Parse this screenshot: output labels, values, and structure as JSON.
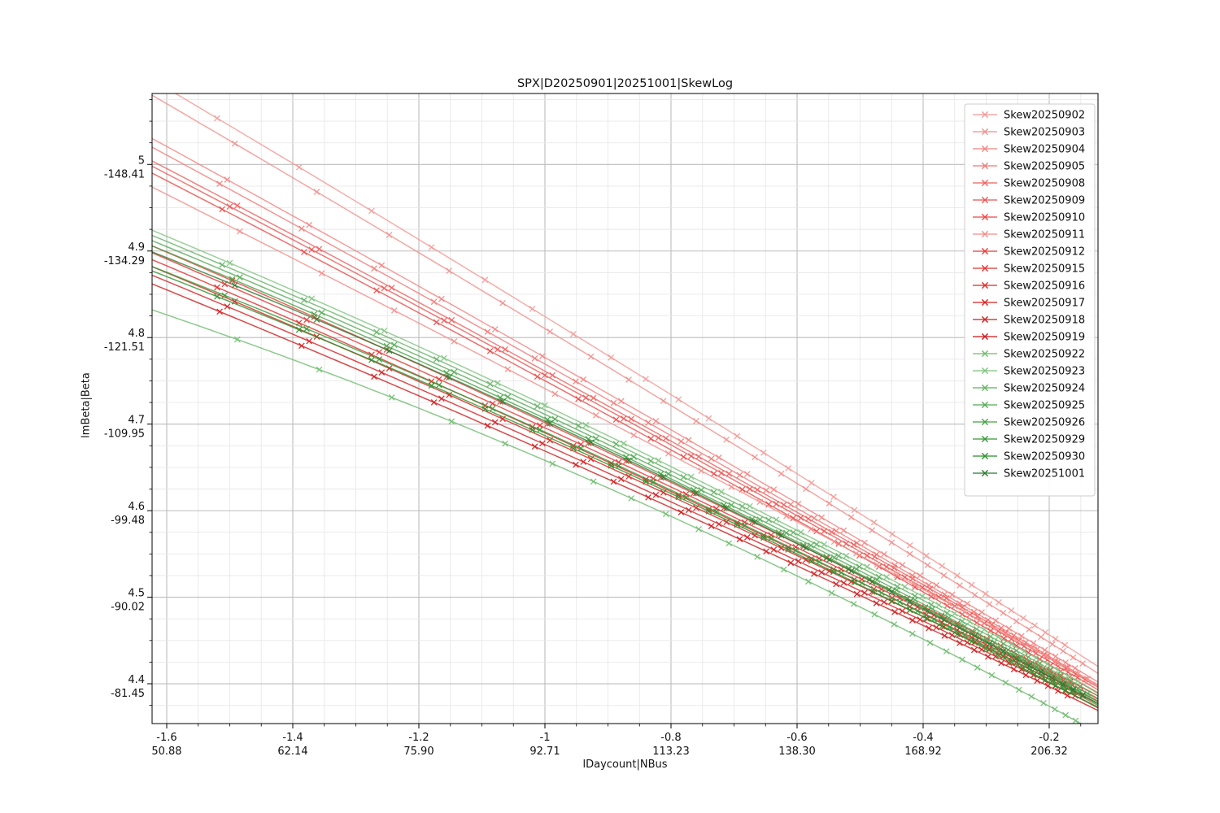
{
  "title": "SPX|D20250901|20251001|SkewLog",
  "axes": {
    "xlabel": "lDaycount|NBus",
    "ylabel": "lmBeta|Beta"
  },
  "chart_data": {
    "type": "line",
    "title": "SPX|D20250901|20251001|SkewLog",
    "xlabel": "lDaycount|NBus",
    "ylabel": "lmBeta|Beta",
    "marker": "x",
    "grid": true,
    "legend_position": "upper right",
    "x_range": [
      -1.6232,
      -0.1226
    ],
    "y_range": [
      4.354,
      5.082
    ],
    "x_ticks": [
      {
        "v": -1.6,
        "line1": "-1.6",
        "line2": "50.88"
      },
      {
        "v": -1.4,
        "line1": "-1.4",
        "line2": "62.14"
      },
      {
        "v": -1.2,
        "line1": "-1.2",
        "line2": "75.90"
      },
      {
        "v": -1.0,
        "line1": "-1",
        "line2": "92.71"
      },
      {
        "v": -0.8,
        "line1": "-0.8",
        "line2": "113.23"
      },
      {
        "v": -0.6,
        "line1": "-0.6",
        "line2": "138.30"
      },
      {
        "v": -0.4,
        "line1": "-0.4",
        "line2": "168.92"
      },
      {
        "v": -0.2,
        "line1": "-0.2",
        "line2": "206.32"
      }
    ],
    "y_ticks": [
      {
        "v": 5.0,
        "line1": "5",
        "line2": "-148.41"
      },
      {
        "v": 4.9,
        "line1": "4.9",
        "line2": "-134.29"
      },
      {
        "v": 4.8,
        "line1": "4.8",
        "line2": "-121.51"
      },
      {
        "v": 4.7,
        "line1": "4.7",
        "line2": "-109.95"
      },
      {
        "v": 4.6,
        "line1": "4.6",
        "line2": "-99.48"
      },
      {
        "v": 4.5,
        "line1": "4.5",
        "line2": "-90.02"
      },
      {
        "v": 4.4,
        "line1": "4.4",
        "line2": "-81.45"
      }
    ],
    "minor_x_step": 0.05,
    "minor_y_step": 0.025,
    "marker_base_x": [
      -1.5,
      -1.37,
      -1.255,
      -1.16,
      -1.075,
      -1.0,
      -0.935,
      -0.875,
      -0.82,
      -0.768,
      -0.72,
      -0.675,
      -0.633,
      -0.594,
      -0.557,
      -0.522,
      -0.489,
      -0.458,
      -0.429,
      -0.401,
      -0.375,
      -0.35,
      -0.326,
      -0.303,
      -0.281,
      -0.26,
      -0.24,
      -0.221,
      -0.203,
      -0.186,
      -0.17,
      -0.155
    ],
    "series": [
      {
        "name": "Skew20250902",
        "color": "#f49996",
        "y_start": 5.098,
        "y_end": 4.42,
        "bend": 0.008
      },
      {
        "name": "Skew20250903",
        "color": "#f38f8c",
        "y_start": 5.08,
        "y_end": 4.412,
        "bend": 0.008
      },
      {
        "name": "Skew20250904",
        "color": "#f28582",
        "y_start": 5.03,
        "y_end": 4.402,
        "bend": 0.008
      },
      {
        "name": "Skew20250905",
        "color": "#f17b78",
        "y_start": 5.02,
        "y_end": 4.398,
        "bend": 0.008
      },
      {
        "name": "Skew20250908",
        "color": "#ee6360",
        "y_start": 5.004,
        "y_end": 4.396,
        "bend": 0.01
      },
      {
        "name": "Skew20250909",
        "color": "#ec5754",
        "y_start": 4.998,
        "y_end": 4.393,
        "bend": 0.01
      },
      {
        "name": "Skew20250910",
        "color": "#ea4b48",
        "y_start": 4.99,
        "y_end": 4.389,
        "bend": 0.01
      },
      {
        "name": "Skew20250911",
        "color": "#f28e8b",
        "y_start": 4.974,
        "y_end": 4.399,
        "bend": 0.006
      },
      {
        "name": "Skew20250912",
        "color": "#e63f3c",
        "y_start": 4.906,
        "y_end": 4.386,
        "bend": 0.012
      },
      {
        "name": "Skew20250915",
        "color": "#e43633",
        "y_start": 4.898,
        "y_end": 4.383,
        "bend": 0.012
      },
      {
        "name": "Skew20250916",
        "color": "#e02d2a",
        "y_start": 4.89,
        "y_end": 4.38,
        "bend": 0.012
      },
      {
        "name": "Skew20250917",
        "color": "#dc2421",
        "y_start": 4.882,
        "y_end": 4.377,
        "bend": 0.012
      },
      {
        "name": "Skew20250918",
        "color": "#d62020",
        "y_start": 4.872,
        "y_end": 4.373,
        "bend": 0.012
      },
      {
        "name": "Skew20250919",
        "color": "#d01b1b",
        "y_start": 4.862,
        "y_end": 4.369,
        "bend": 0.012
      },
      {
        "name": "Skew20250922",
        "color": "#6fbc6f",
        "y_start": 4.832,
        "y_end": 4.343,
        "bend": 0.03
      },
      {
        "name": "Skew20250923",
        "color": "#7fc47f",
        "y_start": 4.924,
        "y_end": 4.39,
        "bend": 0.02
      },
      {
        "name": "Skew20250924",
        "color": "#63b363",
        "y_start": 4.918,
        "y_end": 4.386,
        "bend": 0.02
      },
      {
        "name": "Skew20250925",
        "color": "#55ab55",
        "y_start": 4.912,
        "y_end": 4.382,
        "bend": 0.02
      },
      {
        "name": "Skew20250926",
        "color": "#47a347",
        "y_start": 4.906,
        "y_end": 4.379,
        "bend": 0.02
      },
      {
        "name": "Skew20250929",
        "color": "#389a38",
        "y_start": 4.882,
        "y_end": 4.375,
        "bend": 0.02
      },
      {
        "name": "Skew20250930",
        "color": "#2d912d",
        "y_start": 4.877,
        "y_end": 4.372,
        "bend": 0.02
      },
      {
        "name": "Skew20251001",
        "color": "#2e7d32",
        "y_start": 4.899,
        "y_end": 4.377,
        "bend": 0.022
      }
    ]
  }
}
